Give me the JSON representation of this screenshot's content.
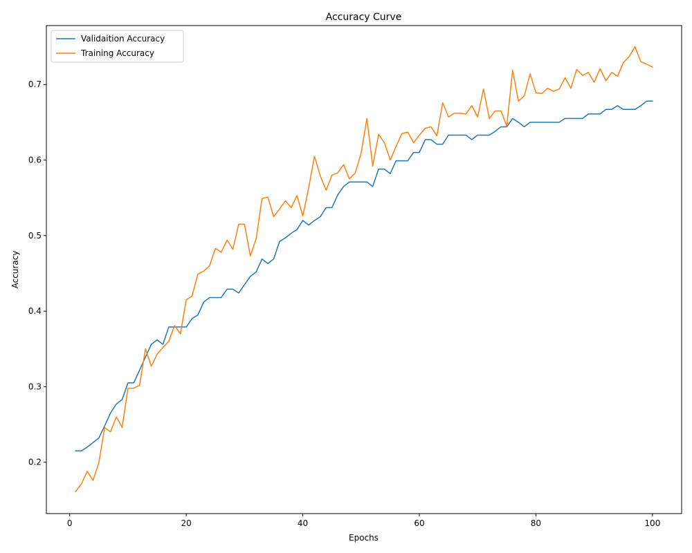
{
  "chart_data": {
    "type": "line",
    "title": "Accuracy Curve",
    "xlabel": "Epochs",
    "ylabel": "Accuracy",
    "xlim": [
      -4,
      105
    ],
    "ylim": [
      0.132,
      0.778
    ],
    "xticks": [
      0,
      20,
      40,
      60,
      80,
      100
    ],
    "yticks": [
      0.2,
      0.3,
      0.4,
      0.5,
      0.6,
      0.7
    ],
    "ytick_labels": [
      "0.2",
      "0.3",
      "0.4",
      "0.5",
      "0.6",
      "0.7"
    ],
    "grid": false,
    "legend_position": "upper-left",
    "x": [
      1,
      2,
      3,
      4,
      5,
      6,
      7,
      8,
      9,
      10,
      11,
      12,
      13,
      14,
      15,
      16,
      17,
      18,
      19,
      20,
      21,
      22,
      23,
      24,
      25,
      26,
      27,
      28,
      29,
      30,
      31,
      32,
      33,
      34,
      35,
      36,
      37,
      38,
      39,
      40,
      41,
      42,
      43,
      44,
      45,
      46,
      47,
      48,
      49,
      50,
      51,
      52,
      53,
      54,
      55,
      56,
      57,
      58,
      59,
      60,
      61,
      62,
      63,
      64,
      65,
      66,
      67,
      68,
      69,
      70,
      71,
      72,
      73,
      74,
      75,
      76,
      77,
      78,
      79,
      80,
      81,
      82,
      83,
      84,
      85,
      86,
      87,
      88,
      89,
      90,
      91,
      92,
      93,
      94,
      95,
      96,
      97,
      98,
      99,
      100
    ],
    "series": [
      {
        "name": "Validaition Accuracy",
        "color": "#1f77b4",
        "values": [
          0.215,
          0.215,
          0.22,
          0.226,
          0.232,
          0.248,
          0.265,
          0.277,
          0.283,
          0.305,
          0.305,
          0.322,
          0.339,
          0.356,
          0.362,
          0.356,
          0.379,
          0.379,
          0.379,
          0.379,
          0.39,
          0.395,
          0.412,
          0.418,
          0.418,
          0.418,
          0.429,
          0.429,
          0.424,
          0.435,
          0.446,
          0.452,
          0.469,
          0.463,
          0.469,
          0.492,
          0.497,
          0.503,
          0.508,
          0.52,
          0.514,
          0.52,
          0.525,
          0.537,
          0.537,
          0.554,
          0.565,
          0.571,
          0.571,
          0.571,
          0.571,
          0.565,
          0.588,
          0.588,
          0.582,
          0.599,
          0.599,
          0.599,
          0.61,
          0.61,
          0.627,
          0.627,
          0.621,
          0.621,
          0.633,
          0.633,
          0.633,
          0.633,
          0.627,
          0.633,
          0.633,
          0.633,
          0.638,
          0.644,
          0.644,
          0.655,
          0.65,
          0.644,
          0.65,
          0.65,
          0.65,
          0.65,
          0.65,
          0.65,
          0.655,
          0.655,
          0.655,
          0.655,
          0.661,
          0.661,
          0.661,
          0.667,
          0.667,
          0.672,
          0.667,
          0.667,
          0.667,
          0.672,
          0.678,
          0.678
        ]
      },
      {
        "name": "Training Accuracy",
        "color": "#ff7f0e",
        "values": [
          0.161,
          0.171,
          0.188,
          0.176,
          0.199,
          0.246,
          0.24,
          0.26,
          0.246,
          0.298,
          0.298,
          0.302,
          0.35,
          0.327,
          0.343,
          0.352,
          0.36,
          0.381,
          0.37,
          0.415,
          0.42,
          0.449,
          0.453,
          0.46,
          0.483,
          0.478,
          0.494,
          0.482,
          0.515,
          0.515,
          0.473,
          0.496,
          0.549,
          0.551,
          0.525,
          0.535,
          0.546,
          0.537,
          0.553,
          0.526,
          0.563,
          0.605,
          0.579,
          0.56,
          0.58,
          0.583,
          0.594,
          0.575,
          0.583,
          0.609,
          0.655,
          0.592,
          0.634,
          0.623,
          0.6,
          0.618,
          0.635,
          0.637,
          0.623,
          0.633,
          0.642,
          0.644,
          0.632,
          0.676,
          0.657,
          0.662,
          0.662,
          0.661,
          0.672,
          0.657,
          0.694,
          0.655,
          0.665,
          0.665,
          0.645,
          0.719,
          0.678,
          0.685,
          0.714,
          0.689,
          0.688,
          0.695,
          0.691,
          0.694,
          0.709,
          0.695,
          0.72,
          0.712,
          0.716,
          0.703,
          0.721,
          0.705,
          0.716,
          0.711,
          0.729,
          0.737,
          0.75,
          0.73,
          0.727,
          0.723
        ]
      }
    ]
  }
}
